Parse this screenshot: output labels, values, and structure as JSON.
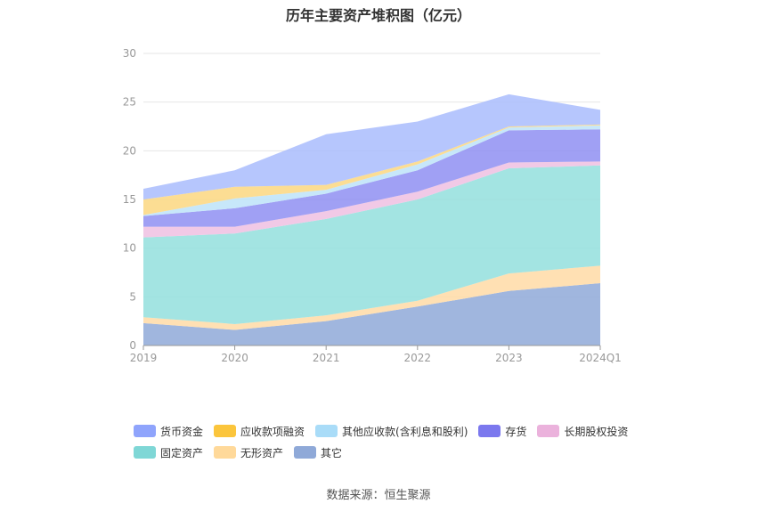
{
  "chart_data": {
    "type": "area",
    "stacked": true,
    "title": "历年主要资产堆积图（亿元）",
    "categories": [
      "2019",
      "2020",
      "2021",
      "2022",
      "2023",
      "2024Q1"
    ],
    "ylim": [
      0,
      30
    ],
    "yticks": [
      0,
      5,
      10,
      15,
      20,
      25,
      30
    ],
    "grid": true,
    "legend_position": "bottom",
    "series": [
      {
        "name": "其它",
        "color": "#8fa9d8",
        "values": [
          2.3,
          1.6,
          2.5,
          4.0,
          5.6,
          6.4
        ]
      },
      {
        "name": "无形资产",
        "color": "#ffdba6",
        "values": [
          0.6,
          0.6,
          0.6,
          0.6,
          1.8,
          1.8
        ]
      },
      {
        "name": "固定资产",
        "color": "#93dfdd",
        "values": [
          8.2,
          9.3,
          9.9,
          10.4,
          10.8,
          10.3
        ]
      },
      {
        "name": "长期股权投资",
        "color": "#efbfe2",
        "values": [
          1.1,
          0.7,
          0.8,
          0.8,
          0.6,
          0.4
        ]
      },
      {
        "name": "存货",
        "color": "#8f8ff2",
        "values": [
          1.1,
          1.9,
          1.8,
          2.2,
          3.3,
          3.3
        ]
      },
      {
        "name": "其他应收款(含利息和股利)",
        "color": "#bde3f9",
        "values": [
          0.1,
          1.0,
          0.4,
          0.6,
          0.3,
          0.4
        ]
      },
      {
        "name": "应收款项融资",
        "color": "#fbd780",
        "values": [
          1.6,
          1.2,
          0.5,
          0.3,
          0.1,
          0.1
        ]
      },
      {
        "name": "货币资金",
        "color": "#a9bcfd",
        "values": [
          1.1,
          1.7,
          5.2,
          4.1,
          3.3,
          1.5
        ]
      }
    ]
  },
  "legend": {
    "row1": [
      {
        "label": "货币资金",
        "color": "#8fa4fc"
      },
      {
        "label": "应收款项融资",
        "color": "#fbc53c"
      },
      {
        "label": "其他应收款(含利息和股利)",
        "color": "#a9dcf8"
      },
      {
        "label": "存货",
        "color": "#7b78ee"
      },
      {
        "label": "长期股权投资",
        "color": "#ebb2dc"
      }
    ],
    "row2": [
      {
        "label": "固定资产",
        "color": "#7fd7d6"
      },
      {
        "label": "无形资产",
        "color": "#ffd99a"
      },
      {
        "label": "其它",
        "color": "#8fa9d8"
      }
    ]
  },
  "source": "数据来源：恒生聚源"
}
